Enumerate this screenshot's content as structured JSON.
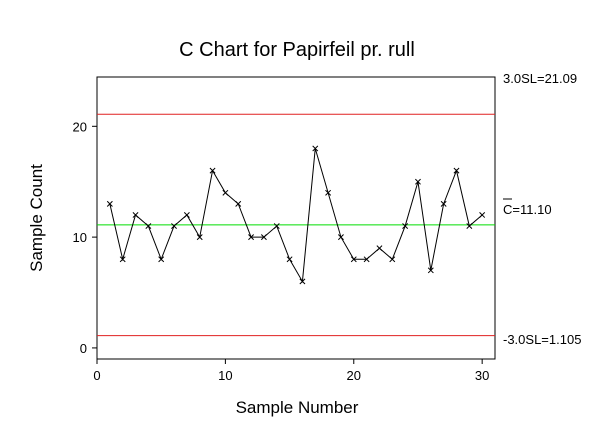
{
  "chart_data": {
    "type": "line",
    "title": "C Chart for Papirfeil pr. rull",
    "xlabel": "Sample Number",
    "ylabel": "Sample Count",
    "xlim": [
      0,
      31
    ],
    "ylim": [
      -1,
      24.45
    ],
    "xticks": [
      0,
      10,
      20,
      30
    ],
    "yticks": [
      0,
      10,
      20
    ],
    "x": [
      1,
      2,
      3,
      4,
      5,
      6,
      7,
      8,
      9,
      10,
      11,
      12,
      13,
      14,
      15,
      16,
      17,
      18,
      19,
      20,
      21,
      22,
      23,
      24,
      25,
      26,
      27,
      28,
      29,
      30
    ],
    "series": [
      {
        "values": [
          13,
          8,
          12,
          11,
          8,
          11,
          12,
          10,
          16,
          14,
          13,
          10,
          10,
          11,
          8,
          6,
          18,
          14,
          10,
          8,
          8,
          9,
          8,
          11,
          15,
          7,
          13,
          16,
          11,
          12
        ],
        "color": "#000000",
        "marker": "x"
      }
    ],
    "control_limits": {
      "ucl": {
        "value": 21.09,
        "label": "3.0SL=21.09",
        "color": "#e02020"
      },
      "center": {
        "value": 11.1,
        "label_prefix": "C",
        "label_value": "=11.10",
        "color": "#00dd00"
      },
      "lcl": {
        "value": 1.105,
        "label": "-3.0SL=1.105",
        "color": "#e02020"
      }
    },
    "grid": false
  }
}
